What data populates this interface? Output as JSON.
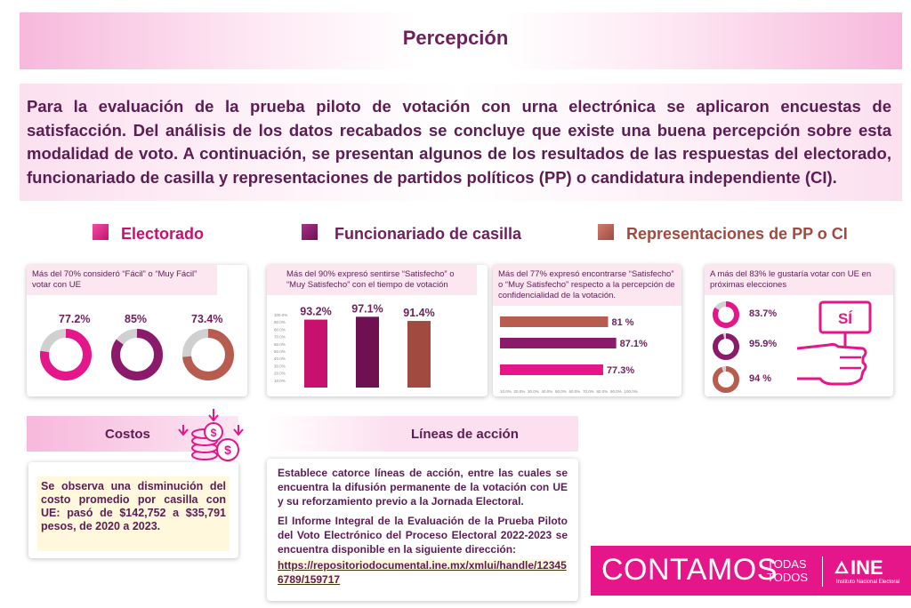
{
  "header": {
    "title": "Percepción"
  },
  "intro": {
    "text": "Para la evaluación de la prueba piloto de votación con urna electrónica se aplicaron encuestas de satisfacción. Del análisis de los datos recabados se concluye que existe una buena percepción sobre esta modalidad de voto. A continuación, se presentan algunos de los resultados de las respuestas del electorado, funcionariado de casilla y representaciones de partidos políticos (PP) o candidatura independiente (CI)."
  },
  "legend": {
    "items": [
      {
        "label": "Electorado",
        "color": "#e4168a"
      },
      {
        "label": "Funcionariado de casilla",
        "color": "#8b1a6b"
      },
      {
        "label": "Representaciones de PP o CI",
        "color": "#b85c50"
      }
    ]
  },
  "card1": {
    "heading": "Más del 70% consideró “Fácil” o “Muy Fácil” votar con UE",
    "values": [
      "77.2%",
      "85%",
      "73.4%"
    ],
    "fractions": [
      0.772,
      0.85,
      0.734
    ]
  },
  "card2": {
    "heading": "Más del 90% expresó sentirse “Satisfecho” o “Muy Satisfecho” con el tiempo de votación",
    "values": [
      "93.2%",
      "97.1%",
      "91.4%"
    ],
    "fractions": [
      0.932,
      0.971,
      0.914
    ],
    "ticks": [
      "100.0%",
      "90.0%",
      "80.0%",
      "70.0%",
      "60.0%",
      "50.0%",
      "40.0%",
      "30.0%",
      "20.0%",
      "10.0%"
    ]
  },
  "card3": {
    "heading": "Más del 77% expresó encontrarse “Satisfecho” o “Muy Satisfecho” respecto a la percepción de confidencialidad de la votación.",
    "values": [
      "81 %",
      "87.1%",
      "77.3%"
    ],
    "fractions": [
      0.81,
      0.871,
      0.773
    ],
    "ticks": [
      "10.0%",
      "20.0%",
      "30.0%",
      "40.0%",
      "50.0%",
      "60.0%",
      "70.0%",
      "80.0%",
      "90.0%",
      "100.0%"
    ]
  },
  "card4": {
    "heading": "A más del 83% le gustaría votar con UE en próximas elecciones",
    "values": [
      "83.7%",
      "95.9%",
      "94 %"
    ],
    "fractions": [
      0.837,
      0.959,
      0.94
    ],
    "sign_text": "SÍ"
  },
  "costs": {
    "title": "Costos",
    "text": "Se observa una disminución del costo promedio por casilla con UE: pasó de $142,752 a $35,791 pesos, de 2020 a 2023.",
    "coin_symbol": "$"
  },
  "action_lines": {
    "title": "Líneas de acción",
    "paragraph1": "Establece catorce líneas de acción, entre las cuales se encuentra la difusión permanente de la votación con UE y su reforzamiento previo a la Jornada Electoral.",
    "paragraph2": "El Informe Integral de la Evaluación de la Prueba Piloto del Voto Electrónico del Proceso Electoral 2022-2023 se encuentra disponible en la siguiente dirección:",
    "url": "https://repositoriodocumental.ine.mx/xmlui/handle/123456789/159717"
  },
  "brand": {
    "slogan": "CONTAMOS",
    "slogan_small_1": "TODAS",
    "slogan_small_2": "TODOS",
    "logo": "INE",
    "logo_sub": "Instituto Nacional Electoral"
  }
}
